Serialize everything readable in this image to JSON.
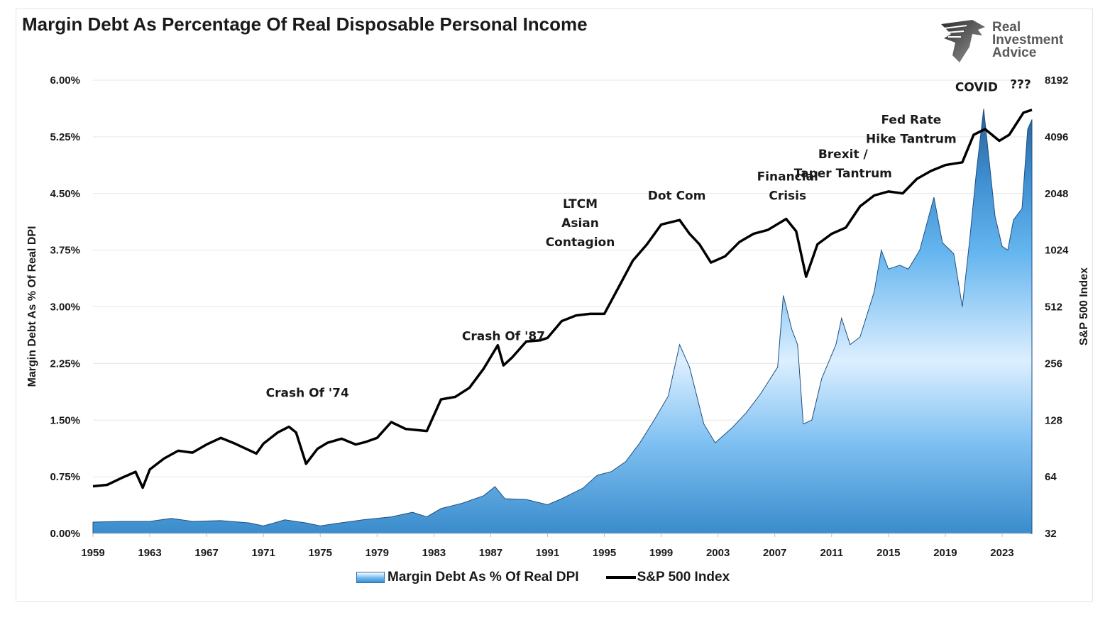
{
  "chart_data": {
    "type": "area+line",
    "title": "Margin Debt As Percentage Of Real Disposable Personal Income",
    "ylabel_left": "Margin Debt As % Of Real DPI",
    "ylabel_right": "S&P 500 Index",
    "x_ticks": [
      "1959",
      "1963",
      "1967",
      "1971",
      "1975",
      "1979",
      "1983",
      "1987",
      "1991",
      "1995",
      "1999",
      "2003",
      "2007",
      "2011",
      "2015",
      "2019",
      "2023"
    ],
    "y_left_ticks": [
      "0.00%",
      "0.75%",
      "1.50%",
      "2.25%",
      "3.00%",
      "3.75%",
      "4.50%",
      "5.25%",
      "6.00%"
    ],
    "y_left_range": [
      0,
      6
    ],
    "y_right_ticks": [
      "32",
      "64",
      "128",
      "256",
      "512",
      "1024",
      "2048",
      "4096",
      "8192"
    ],
    "y_right_range": [
      32,
      8192
    ],
    "y_right_scale": "log2",
    "x_range": [
      1959,
      2025
    ],
    "legend_position": "bottom",
    "grid": true,
    "series": [
      {
        "name": "Margin Debt As % Of Real DPI",
        "kind": "area",
        "axis": "left",
        "x": [
          1959,
          1961,
          1963,
          1964.5,
          1966,
          1968,
          1970,
          1971,
          1972.5,
          1974,
          1975,
          1976,
          1978,
          1980,
          1981.5,
          1982.5,
          1983.5,
          1985,
          1986.5,
          1987.3,
          1988,
          1989.5,
          1991,
          1992,
          1993.5,
          1994.5,
          1995.5,
          1996.5,
          1997.5,
          1998.5,
          1999.5,
          2000.3,
          2001,
          2002,
          2002.8,
          2004,
          2005,
          2006,
          2007.2,
          2007.6,
          2008.2,
          2008.6,
          2009,
          2009.6,
          2010.3,
          2011.3,
          2011.7,
          2012.3,
          2013,
          2014,
          2014.5,
          2015,
          2015.8,
          2016.4,
          2017.2,
          2018.2,
          2018.8,
          2019.6,
          2020.2,
          2020.7,
          2021.2,
          2021.7,
          2022.5,
          2023,
          2023.4,
          2023.8,
          2024.4,
          2024.8,
          2025.1
        ],
        "y": [
          0.15,
          0.16,
          0.16,
          0.2,
          0.16,
          0.17,
          0.14,
          0.1,
          0.18,
          0.14,
          0.1,
          0.13,
          0.18,
          0.22,
          0.28,
          0.22,
          0.33,
          0.4,
          0.5,
          0.62,
          0.46,
          0.45,
          0.38,
          0.46,
          0.6,
          0.77,
          0.82,
          0.95,
          1.2,
          1.5,
          1.82,
          2.5,
          2.2,
          1.45,
          1.2,
          1.4,
          1.6,
          1.85,
          2.2,
          3.15,
          2.7,
          2.5,
          1.45,
          1.5,
          2.05,
          2.5,
          2.85,
          2.5,
          2.6,
          3.2,
          3.75,
          3.5,
          3.55,
          3.5,
          3.75,
          4.45,
          3.85,
          3.7,
          3.0,
          3.85,
          4.8,
          5.62,
          4.2,
          3.8,
          3.75,
          4.15,
          4.3,
          5.35,
          5.48
        ]
      },
      {
        "name": "S&P 500 Index",
        "kind": "line",
        "axis": "right",
        "x": [
          1959,
          1960,
          1961,
          1962,
          1962.5,
          1963,
          1964,
          1965,
          1966,
          1967,
          1968,
          1969,
          1970.5,
          1971,
          1972,
          1972.8,
          1973.3,
          1974,
          1974.8,
          1975.5,
          1976.5,
          1977.5,
          1978.2,
          1979,
          1980,
          1981,
          1982.5,
          1983.5,
          1984.5,
          1985.5,
          1986.5,
          1987.5,
          1987.9,
          1988.5,
          1989.5,
          1990.5,
          1991,
          1992,
          1993,
          1994,
          1995,
          1996,
          1997,
          1998,
          1999,
          2000.3,
          2001,
          2001.7,
          2002.5,
          2003.5,
          2004.5,
          2005.5,
          2006.5,
          2007.8,
          2008.5,
          2009.2,
          2010,
          2011,
          2012,
          2013,
          2014,
          2015,
          2016,
          2017,
          2018,
          2019,
          2020.2,
          2021,
          2021.8,
          2022.8,
          2023.5,
          2024.5,
          2025.1
        ],
        "y": [
          57,
          58,
          63,
          68,
          56,
          70,
          80,
          88,
          86,
          95,
          103,
          96,
          85,
          96,
          110,
          118,
          110,
          75,
          90,
          97,
          102,
          95,
          98,
          103,
          125,
          115,
          112,
          165,
          170,
          190,
          240,
          320,
          250,
          275,
          335,
          340,
          350,
          430,
          460,
          470,
          470,
          650,
          900,
          1100,
          1400,
          1480,
          1250,
          1100,
          880,
          950,
          1130,
          1250,
          1310,
          1500,
          1290,
          740,
          1100,
          1250,
          1350,
          1750,
          2000,
          2100,
          2050,
          2450,
          2700,
          2900,
          3000,
          4200,
          4500,
          3900,
          4200,
          5500,
          5700
        ]
      }
    ],
    "annotations": [
      {
        "lines": [
          "Crash Of '74"
        ],
        "x": 1974.1,
        "y_right": 170
      },
      {
        "lines": [
          "Crash Of '87"
        ],
        "x": 1987.9,
        "y_right": 340
      },
      {
        "lines": [
          "LTCM",
          "Asian",
          "Contagion"
        ],
        "x": 1993.3,
        "y_right": 1720
      },
      {
        "lines": [
          "Dot Com"
        ],
        "x": 2000.1,
        "y_right": 1900
      },
      {
        "lines": [
          "Financial",
          "Crisis"
        ],
        "x": 2007.9,
        "y_right": 2400
      },
      {
        "lines": [
          "Brexit /",
          "Taper Tantrum"
        ],
        "x": 2011.8,
        "y_right": 3150
      },
      {
        "lines": [
          "Fed Rate",
          "Hike Tantrum"
        ],
        "x": 2016.6,
        "y_right": 4800
      },
      {
        "lines": [
          "COVID"
        ],
        "x": 2021.2,
        "y_right": 7150
      },
      {
        "lines": [
          "???"
        ],
        "x": 2024.3,
        "y_right": 7400
      }
    ]
  },
  "logo": {
    "lines": [
      "Real",
      "Investment",
      "Advice"
    ]
  },
  "legend": {
    "area_label": "Margin Debt As % Of Real DPI",
    "line_label": "S&P 500 Index"
  },
  "colors": {
    "area_top": "#ffffff",
    "area_mid": "#5fb0ef",
    "area_bottom": "#3a8ccc",
    "area_peak": "#1f4d7a",
    "line": "#000000",
    "grid": "#e6e6e6"
  }
}
